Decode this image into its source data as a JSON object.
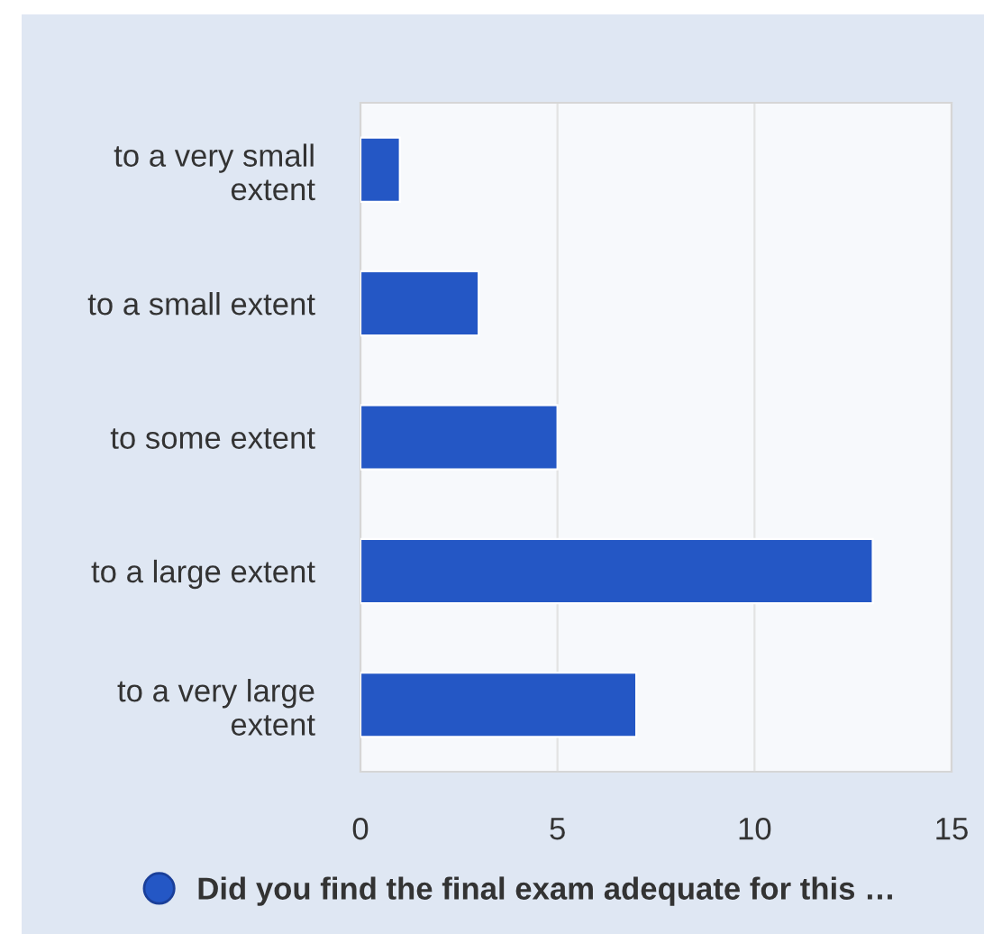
{
  "chart_data": {
    "type": "bar",
    "orientation": "horizontal",
    "categories": [
      "to a very small\nextent",
      "to a small extent",
      "to some extent",
      "to a large extent",
      "to a very large\nextent"
    ],
    "series": [
      {
        "name": "Did you find the final exam adequate for this …",
        "color": "#2457c5",
        "values": [
          1,
          3,
          5,
          13,
          7
        ]
      }
    ],
    "xlim": [
      0,
      15
    ],
    "xticks": [
      0,
      5,
      10,
      15
    ],
    "grid": "x",
    "legend": "bottom"
  }
}
